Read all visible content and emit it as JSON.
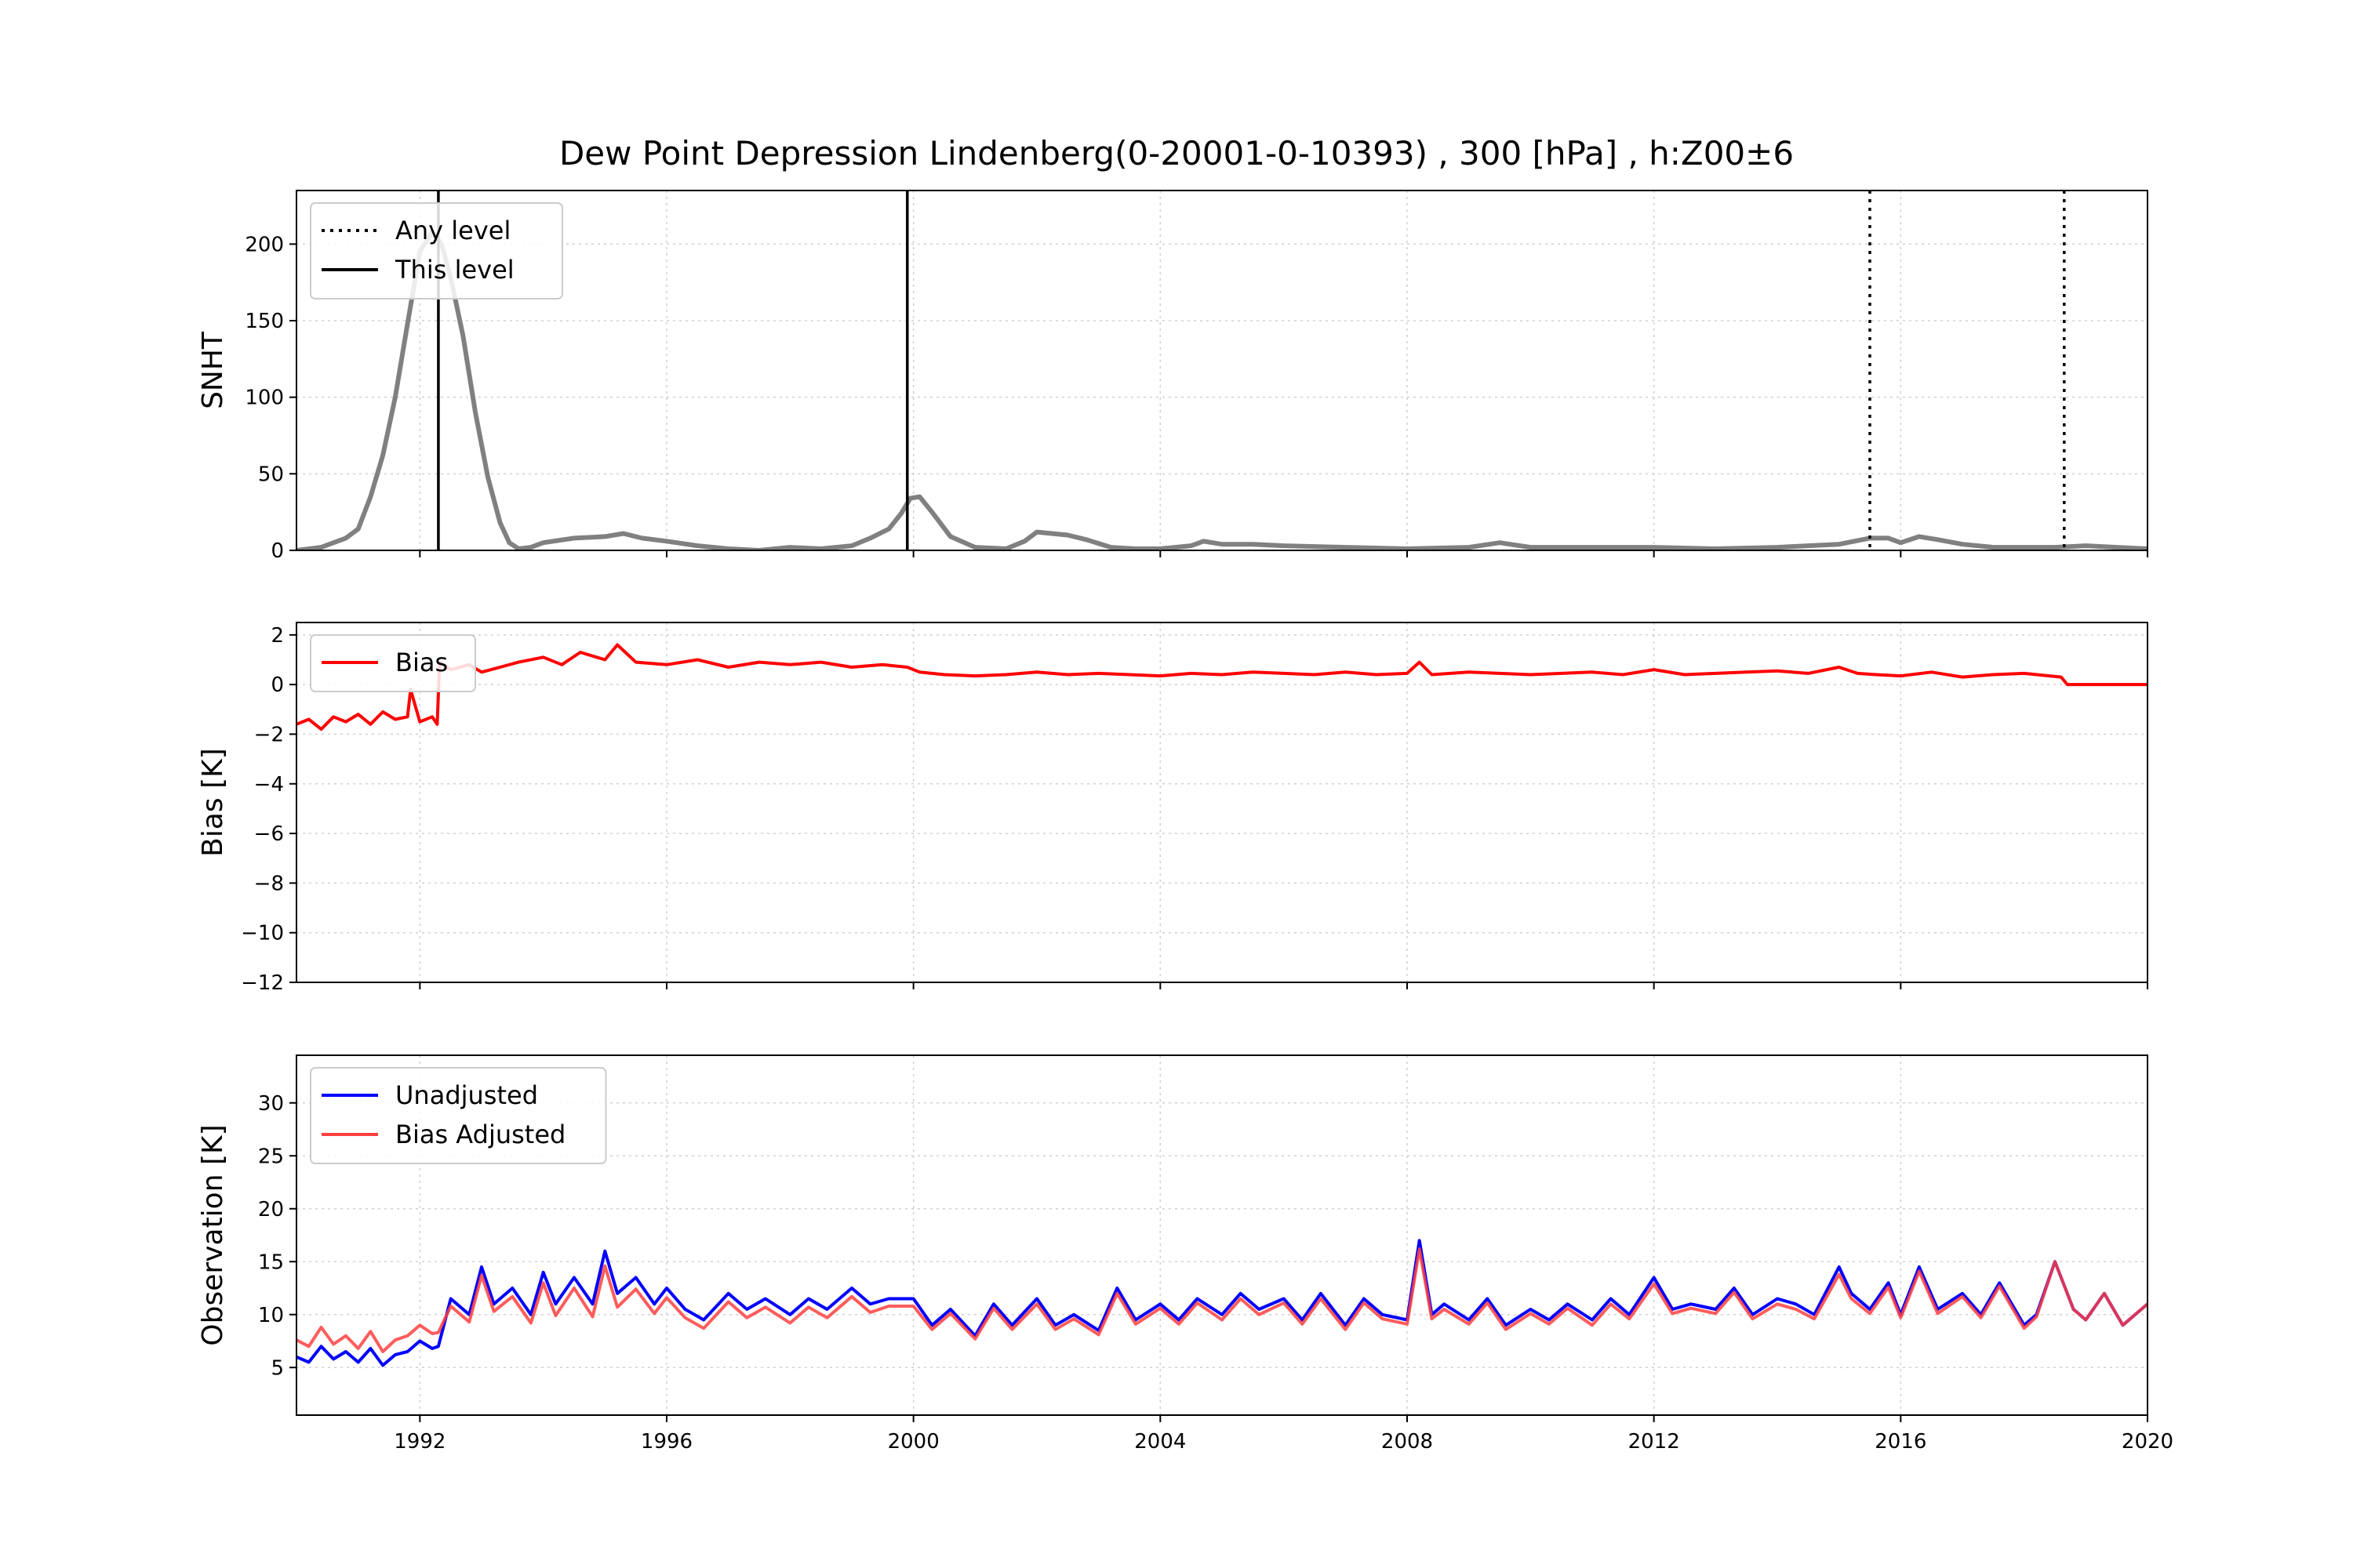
{
  "figure": {
    "title": "Dew Point Depression Lindenberg(0-20001-0-10393) , 300 [hPa] , h:Z00±6"
  },
  "chart_data": [
    {
      "type": "line",
      "ylabel": "SNHT",
      "xlabel": "",
      "xlim": [
        1990.0,
        2020.0
      ],
      "ylim": [
        0,
        235
      ],
      "x_ticks": [
        1992,
        1996,
        2000,
        2004,
        2008,
        2012,
        2016,
        2020
      ],
      "y_ticks": [
        0,
        50,
        100,
        150,
        200
      ],
      "grid": true,
      "legend": {
        "placement": "top-left",
        "entries": [
          {
            "label": "Any level",
            "style": "dotted",
            "color": "#000000"
          },
          {
            "label": "This level",
            "style": "solid",
            "color": "#000000"
          }
        ]
      },
      "series": [
        {
          "color": "#808080",
          "x": [
            1990.0,
            1990.4,
            1990.8,
            1991.0,
            1991.2,
            1991.4,
            1991.6,
            1991.8,
            1992.0,
            1992.2,
            1992.35,
            1992.5,
            1992.7,
            1992.9,
            1993.1,
            1993.3,
            1993.45,
            1993.6,
            1993.8,
            1994.0,
            1994.5,
            1995.0,
            1995.3,
            1995.6,
            1996.0,
            1996.5,
            1997.0,
            1997.5,
            1998.0,
            1998.5,
            1999.0,
            1999.3,
            1999.6,
            1999.8,
            1999.95,
            2000.1,
            2000.3,
            2000.6,
            2001.0,
            2001.5,
            2001.8,
            2002.0,
            2002.5,
            2002.8,
            2003.2,
            2003.6,
            2004.0,
            2004.5,
            2004.7,
            2005.0,
            2005.5,
            2006.0,
            2007.0,
            2008.0,
            2009.0,
            2009.5,
            2010.0,
            2011.0,
            2012.0,
            2013.0,
            2014.0,
            2014.5,
            2015.0,
            2015.5,
            2015.8,
            2016.0,
            2016.3,
            2016.6,
            2017.0,
            2017.5,
            2018.0,
            2018.5,
            2019.0,
            2019.5,
            2020.0
          ],
          "y": [
            0,
            2,
            8,
            14,
            35,
            62,
            100,
            148,
            195,
            208,
            200,
            178,
            140,
            90,
            48,
            18,
            5,
            1,
            2,
            5,
            8,
            9,
            11,
            8,
            6,
            3,
            1,
            0,
            2,
            1,
            3,
            8,
            14,
            24,
            34,
            35,
            25,
            9,
            2,
            1,
            6,
            12,
            10,
            7,
            2,
            1,
            1,
            3,
            6,
            4,
            4,
            3,
            2,
            1,
            2,
            5,
            2,
            2,
            2,
            1,
            2,
            3,
            4,
            8,
            8,
            5,
            9,
            7,
            4,
            2,
            2,
            2,
            3,
            2,
            1
          ]
        }
      ],
      "this_level_breaks": [
        1992.3,
        1999.9
      ],
      "any_level_breaks": [
        2015.5,
        2018.65
      ]
    },
    {
      "type": "line",
      "ylabel": "Bias [K]",
      "xlabel": "",
      "xlim": [
        1990.0,
        2020.0
      ],
      "ylim": [
        -12,
        2.5
      ],
      "x_ticks": [
        1992,
        1996,
        2000,
        2004,
        2008,
        2012,
        2016,
        2020
      ],
      "y_ticks": [
        2,
        0,
        -2,
        -4,
        -6,
        -8,
        -10,
        -12
      ],
      "grid": true,
      "legend": {
        "placement": "top-left",
        "entries": [
          {
            "label": "Bias",
            "style": "solid",
            "color": "#ff0000"
          }
        ]
      },
      "series": [
        {
          "name": "Bias",
          "color": "#ff0000",
          "x": [
            1990.0,
            1990.2,
            1990.4,
            1990.6,
            1990.8,
            1991.0,
            1991.2,
            1991.4,
            1991.6,
            1991.8,
            1991.85,
            1992.0,
            1992.2,
            1992.28,
            1992.32,
            1992.5,
            1992.8,
            1993.0,
            1993.3,
            1993.6,
            1994.0,
            1994.3,
            1994.6,
            1995.0,
            1995.2,
            1995.5,
            1996.0,
            1996.5,
            1997.0,
            1997.5,
            1998.0,
            1998.5,
            1999.0,
            1999.5,
            1999.9,
            2000.1,
            2000.5,
            2001.0,
            2001.5,
            2002.0,
            2002.5,
            2003.0,
            2003.5,
            2004.0,
            2004.5,
            2005.0,
            2005.5,
            2006.0,
            2006.5,
            2007.0,
            2007.5,
            2008.0,
            2008.2,
            2008.4,
            2009.0,
            2009.5,
            2010.0,
            2010.5,
            2011.0,
            2011.5,
            2012.0,
            2012.5,
            2013.0,
            2013.5,
            2014.0,
            2014.5,
            2015.0,
            2015.3,
            2015.6,
            2016.0,
            2016.5,
            2017.0,
            2017.5,
            2018.0,
            2018.6,
            2018.7,
            2019.0,
            2020.0
          ],
          "y": [
            -1.6,
            -1.4,
            -1.8,
            -1.3,
            -1.5,
            -1.2,
            -1.6,
            -1.1,
            -1.4,
            -1.3,
            -0.2,
            -1.5,
            -1.3,
            -1.6,
            0.9,
            0.6,
            0.8,
            0.5,
            0.7,
            0.9,
            1.1,
            0.8,
            1.3,
            1.0,
            1.6,
            0.9,
            0.8,
            1.0,
            0.7,
            0.9,
            0.8,
            0.9,
            0.7,
            0.8,
            0.7,
            0.5,
            0.4,
            0.35,
            0.4,
            0.5,
            0.4,
            0.45,
            0.4,
            0.35,
            0.45,
            0.4,
            0.5,
            0.45,
            0.4,
            0.5,
            0.4,
            0.45,
            0.9,
            0.4,
            0.5,
            0.45,
            0.4,
            0.45,
            0.5,
            0.4,
            0.6,
            0.4,
            0.45,
            0.5,
            0.55,
            0.45,
            0.7,
            0.45,
            0.4,
            0.35,
            0.5,
            0.3,
            0.4,
            0.45,
            0.3,
            0.0,
            0.0,
            0.0
          ]
        }
      ]
    },
    {
      "type": "line",
      "ylabel": "Observation [K]",
      "xlabel": "",
      "xlim": [
        1990.0,
        2020.0
      ],
      "ylim": [
        0.5,
        34.5
      ],
      "x_ticks": [
        1992,
        1996,
        2000,
        2004,
        2008,
        2012,
        2016,
        2020
      ],
      "x_tick_labels": [
        "1992",
        "1996",
        "2000",
        "2004",
        "2008",
        "2012",
        "2016",
        "2020"
      ],
      "y_ticks": [
        5,
        10,
        15,
        20,
        25,
        30
      ],
      "grid": true,
      "legend": {
        "placement": "top-left",
        "entries": [
          {
            "label": "Unadjusted",
            "style": "solid",
            "color": "#0000ff"
          },
          {
            "label": "Bias Adjusted",
            "style": "solid",
            "color": "#ff4040"
          }
        ]
      },
      "series": [
        {
          "name": "Unadjusted",
          "color": "#0000ff",
          "x": [
            1990.0,
            1990.2,
            1990.4,
            1990.6,
            1990.8,
            1991.0,
            1991.2,
            1991.4,
            1991.6,
            1991.8,
            1992.0,
            1992.2,
            1992.3,
            1992.5,
            1992.8,
            1993.0,
            1993.2,
            1993.5,
            1993.8,
            1994.0,
            1994.2,
            1994.5,
            1994.8,
            1995.0,
            1995.2,
            1995.5,
            1995.8,
            1996.0,
            1996.3,
            1996.6,
            1997.0,
            1997.3,
            1997.6,
            1998.0,
            1998.3,
            1998.6,
            1999.0,
            1999.3,
            1999.6,
            2000.0,
            2000.3,
            2000.6,
            2001.0,
            2001.3,
            2001.6,
            2002.0,
            2002.3,
            2002.6,
            2003.0,
            2003.3,
            2003.6,
            2004.0,
            2004.3,
            2004.6,
            2005.0,
            2005.3,
            2005.6,
            2006.0,
            2006.3,
            2006.6,
            2007.0,
            2007.3,
            2007.6,
            2008.0,
            2008.2,
            2008.4,
            2008.6,
            2009.0,
            2009.3,
            2009.6,
            2010.0,
            2010.3,
            2010.6,
            2011.0,
            2011.3,
            2011.6,
            2012.0,
            2012.3,
            2012.6,
            2013.0,
            2013.3,
            2013.6,
            2014.0,
            2014.3,
            2014.6,
            2015.0,
            2015.2,
            2015.5,
            2015.8,
            2016.0,
            2016.3,
            2016.6,
            2017.0,
            2017.3,
            2017.6,
            2018.0,
            2018.2,
            2018.5,
            2018.8,
            2019.0,
            2019.3,
            2019.6,
            2020.0
          ],
          "y": [
            6,
            5.5,
            7,
            5.8,
            6.5,
            5.5,
            6.8,
            5.2,
            6.2,
            6.5,
            7.5,
            6.8,
            7,
            11.5,
            10,
            14.5,
            11,
            12.5,
            10,
            14,
            11,
            13.5,
            11,
            16,
            12,
            13.5,
            11,
            12.5,
            10.5,
            9.5,
            12,
            10.5,
            11.5,
            10,
            11.5,
            10.5,
            12.5,
            11,
            11.5,
            11.5,
            9,
            10.5,
            8,
            11,
            9,
            11.5,
            9,
            10,
            8.5,
            12.5,
            9.5,
            11,
            9.5,
            11.5,
            10,
            12,
            10.5,
            11.5,
            9.5,
            12,
            9,
            11.5,
            10,
            9.5,
            17,
            10,
            11,
            9.5,
            11.5,
            9,
            10.5,
            9.5,
            11,
            9.5,
            11.5,
            10,
            13.5,
            10.5,
            11,
            10.5,
            12.5,
            10,
            11.5,
            11,
            10,
            14.5,
            12,
            10.5,
            13,
            10,
            14.5,
            10.5,
            12,
            10,
            13,
            9,
            10,
            15,
            10.5,
            9.5,
            12,
            9,
            11
          ]
        },
        {
          "name": "Bias Adjusted",
          "color": "#ff4040",
          "x": [
            1990.0,
            1990.2,
            1990.4,
            1990.6,
            1990.8,
            1991.0,
            1991.2,
            1991.4,
            1991.6,
            1991.8,
            1992.0,
            1992.2,
            1992.3,
            1992.5,
            1992.8,
            1993.0,
            1993.2,
            1993.5,
            1993.8,
            1994.0,
            1994.2,
            1994.5,
            1994.8,
            1995.0,
            1995.2,
            1995.5,
            1995.8,
            1996.0,
            1996.3,
            1996.6,
            1997.0,
            1997.3,
            1997.6,
            1998.0,
            1998.3,
            1998.6,
            1999.0,
            1999.3,
            1999.6,
            2000.0,
            2000.3,
            2000.6,
            2001.0,
            2001.3,
            2001.6,
            2002.0,
            2002.3,
            2002.6,
            2003.0,
            2003.3,
            2003.6,
            2004.0,
            2004.3,
            2004.6,
            2005.0,
            2005.3,
            2005.6,
            2006.0,
            2006.3,
            2006.6,
            2007.0,
            2007.3,
            2007.6,
            2008.0,
            2008.2,
            2008.4,
            2008.6,
            2009.0,
            2009.3,
            2009.6,
            2010.0,
            2010.3,
            2010.6,
            2011.0,
            2011.3,
            2011.6,
            2012.0,
            2012.3,
            2012.6,
            2013.0,
            2013.3,
            2013.6,
            2014.0,
            2014.3,
            2014.6,
            2015.0,
            2015.2,
            2015.5,
            2015.8,
            2016.0,
            2016.3,
            2016.6,
            2017.0,
            2017.3,
            2017.6,
            2018.0,
            2018.2,
            2018.5,
            2018.8,
            2019.0,
            2019.3,
            2019.6,
            2020.0
          ],
          "y": [
            7.6,
            7,
            8.8,
            7.2,
            8,
            6.8,
            8.4,
            6.5,
            7.6,
            8,
            9,
            8.2,
            8.3,
            10.8,
            9.3,
            13.7,
            10.3,
            11.7,
            9.2,
            13,
            9.9,
            12.5,
            9.8,
            14.6,
            10.7,
            12.4,
            10.1,
            11.6,
            9.7,
            8.7,
            11.2,
            9.7,
            10.7,
            9.2,
            10.7,
            9.7,
            11.7,
            10.2,
            10.8,
            10.8,
            8.6,
            10.1,
            7.7,
            10.6,
            8.6,
            11,
            8.6,
            9.6,
            8.1,
            12,
            9.1,
            10.6,
            9.1,
            11.1,
            9.5,
            11.5,
            10,
            11.1,
            9.1,
            11.5,
            8.6,
            11.1,
            9.6,
            9.1,
            16.2,
            9.6,
            10.5,
            9.1,
            11.1,
            8.6,
            10.1,
            9.1,
            10.6,
            9,
            11,
            9.6,
            12.9,
            10.1,
            10.6,
            10.1,
            12.1,
            9.6,
            11,
            10.5,
            9.6,
            13.8,
            11.5,
            10.1,
            12.6,
            9.7,
            14.1,
            10.1,
            11.7,
            9.7,
            12.7,
            8.7,
            9.8,
            15,
            10.5,
            9.5,
            12,
            9,
            11
          ]
        }
      ]
    }
  ]
}
